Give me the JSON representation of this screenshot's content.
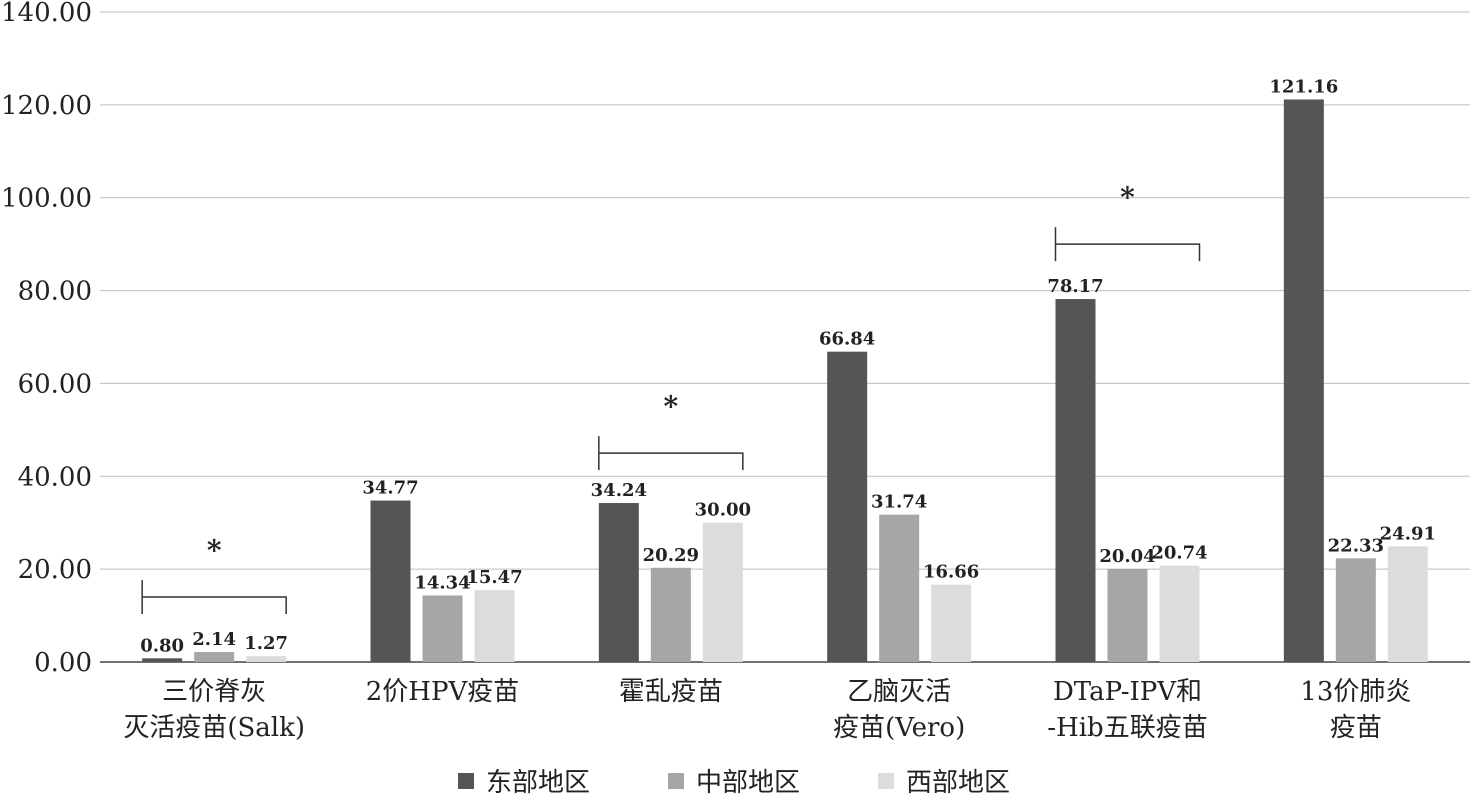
{
  "chart_data": {
    "type": "bar",
    "title": "",
    "xlabel": "",
    "ylabel": "",
    "ylim": [
      0,
      140
    ],
    "yticks": [
      "0.00",
      "20.00",
      "40.00",
      "60.00",
      "80.00",
      "100.00",
      "120.00",
      "140.00"
    ],
    "grid": true,
    "legend_position": "bottom",
    "categories": [
      [
        "三价脊灰",
        "灭活疫苗(Salk)"
      ],
      [
        "2价HPV疫苗"
      ],
      [
        "霍乱疫苗"
      ],
      [
        "乙脑灭活",
        "疫苗(Vero)"
      ],
      [
        "DTaP-IPV和",
        "-Hib五联疫苗"
      ],
      [
        "13价肺炎",
        "疫苗"
      ]
    ],
    "series": [
      {
        "name": "东部地区",
        "color": "#555555",
        "values": [
          0.8,
          34.77,
          34.24,
          66.84,
          78.17,
          121.16
        ],
        "labels": [
          "0.80",
          "34.77",
          "34.24",
          "66.84",
          "78.17",
          "121.16"
        ]
      },
      {
        "name": "中部地区",
        "color": "#a6a6a6",
        "values": [
          2.14,
          14.34,
          20.29,
          31.74,
          20.04,
          22.33
        ],
        "labels": [
          "2.14",
          "14.34",
          "20.29",
          "31.74",
          "20.04",
          "22.33"
        ]
      },
      {
        "name": "西部地区",
        "color": "#dcdcdc",
        "values": [
          1.27,
          15.47,
          30.0,
          16.66,
          20.74,
          24.91
        ],
        "labels": [
          "1.27",
          "15.47",
          "30.00",
          "16.66",
          "20.74",
          "24.91"
        ]
      }
    ],
    "significance": [
      {
        "category_index": 0,
        "marker": "*",
        "bracket_height": 14,
        "star_height": 25
      },
      {
        "category_index": 2,
        "marker": "*",
        "bracket_height": 45,
        "star_height": 56
      },
      {
        "category_index": 4,
        "marker": "*",
        "bracket_height": 90,
        "star_height": 101
      }
    ]
  }
}
